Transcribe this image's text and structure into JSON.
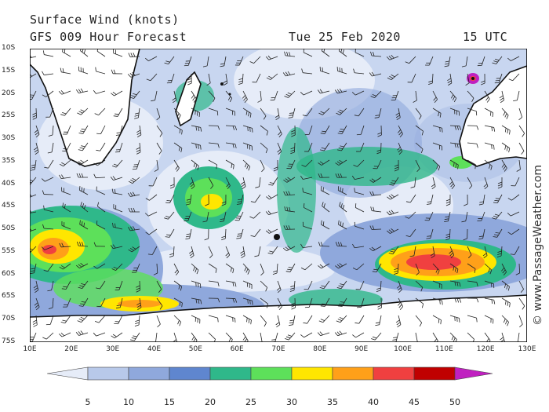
{
  "header": {
    "title": "Surface Wind (knots)",
    "forecast": "GFS 009 Hour Forecast",
    "date": "Tue 25 Feb 2020",
    "time": "15 UTC"
  },
  "credit": "© www.PassageWeather.com",
  "map": {
    "lat_labels": [
      "10S",
      "15S",
      "20S",
      "25S",
      "30S",
      "35S",
      "40S",
      "45S",
      "50S",
      "55S",
      "60S",
      "65S",
      "70S",
      "75S"
    ],
    "lon_labels": [
      "10E",
      "20E",
      "30E",
      "40E",
      "50E",
      "60E",
      "70E",
      "80E",
      "90E",
      "100E",
      "110E",
      "120E",
      "130E"
    ],
    "lat_range": [
      -10,
      -75
    ],
    "lon_range": [
      10,
      130
    ],
    "legend_values": [
      "5",
      "10",
      "15",
      "20",
      "25",
      "30",
      "35",
      "40",
      "45",
      "50"
    ],
    "legend_colors": [
      "#e6ecf8",
      "#b8c9ea",
      "#8fa8dc",
      "#5f86cf",
      "#2fb88a",
      "#5de05a",
      "#ffe600",
      "#ffa019",
      "#f04040",
      "#c00000",
      "#c020c0"
    ],
    "land_color": "#ffffff",
    "ocean_base": "#c8d6f0"
  }
}
